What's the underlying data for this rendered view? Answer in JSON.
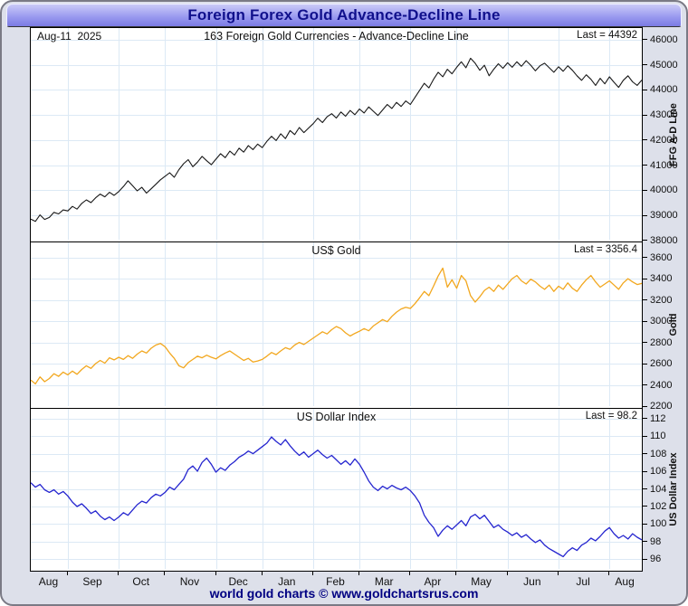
{
  "window": {
    "title": "Foreign Forex Gold Advance-Decline Line"
  },
  "date_label": "Aug-11  2025",
  "footer_text": "world gold charts © www.goldchartsrus.com",
  "months": [
    "Aug",
    "Sep",
    "Oct",
    "Nov",
    "Dec",
    "Jan",
    "Feb",
    "Mar",
    "Apr",
    "May",
    "Jun",
    "Jul",
    "Aug"
  ],
  "month_start_indices": [
    8,
    19,
    29,
    40,
    50,
    61,
    71,
    82,
    92,
    103,
    114,
    125
  ],
  "colors": {
    "title_text": "#10108c",
    "footer_text": "#000082",
    "grid": "#dce9f5",
    "adline": "#181818",
    "gold": "#f2a71e",
    "usd_index": "#2525cf",
    "frame_bg": "#dde0ea"
  },
  "chart_data": [
    {
      "type": "line",
      "title": "163 Foreign Gold Currencies - Advance-Decline Line",
      "last_label": "Last = 44392",
      "last_value": 44392,
      "ylabel": "FFG A-D Line",
      "color": "#181818",
      "stroke_width": 1.1,
      "ydomain": [
        46462,
        38034
      ],
      "yticks": [
        46000,
        45000,
        44000,
        43000,
        42000,
        41000,
        40000,
        39000,
        38000
      ],
      "x_range": "Aug 2024 - Aug 2025",
      "grid": true,
      "values": [
        38850,
        38760,
        39020,
        38840,
        38920,
        39120,
        39060,
        39220,
        39180,
        39360,
        39250,
        39480,
        39620,
        39510,
        39700,
        39850,
        39740,
        39920,
        39800,
        39950,
        40150,
        40380,
        40180,
        39980,
        40120,
        39890,
        40060,
        40240,
        40420,
        40560,
        40700,
        40520,
        40820,
        41060,
        41220,
        40940,
        41120,
        41350,
        41180,
        41020,
        41240,
        41460,
        41300,
        41560,
        41400,
        41680,
        41520,
        41780,
        41620,
        41840,
        41700,
        41950,
        42150,
        41980,
        42250,
        42060,
        42380,
        42220,
        42500,
        42300,
        42480,
        42650,
        42870,
        42700,
        42930,
        43050,
        42880,
        43120,
        42950,
        43180,
        43010,
        43240,
        43080,
        43320,
        43150,
        42980,
        43200,
        43420,
        43260,
        43500,
        43340,
        43560,
        43420,
        43700,
        43980,
        44260,
        44080,
        44420,
        44700,
        44520,
        44820,
        44640,
        44900,
        45120,
        44880,
        45260,
        45060,
        44780,
        44980,
        44560,
        44820,
        45040,
        44860,
        45080,
        44900,
        45120,
        44940,
        45160,
        44980,
        44760,
        44960,
        45060,
        44880,
        44700,
        44920,
        44740,
        44960,
        44780,
        44560,
        44380,
        44600,
        44420,
        44180,
        44460,
        44240,
        44520,
        44300,
        44100,
        44380,
        44560,
        44320,
        44180,
        44392
      ]
    },
    {
      "type": "line",
      "title": "US$ Gold",
      "last_label": "Last = 3356.4",
      "last_value": 3356.4,
      "ylabel": "Gold",
      "color": "#f2a71e",
      "stroke_width": 1.3,
      "ydomain": [
        3742,
        2200
      ],
      "yticks": [
        3600,
        3400,
        3200,
        3000,
        2800,
        2600,
        2400,
        2200
      ],
      "x_range": "Aug 2024 - Aug 2025",
      "grid": true,
      "values": [
        2445,
        2410,
        2475,
        2430,
        2460,
        2505,
        2480,
        2520,
        2495,
        2530,
        2500,
        2545,
        2580,
        2555,
        2600,
        2630,
        2605,
        2655,
        2635,
        2660,
        2640,
        2675,
        2650,
        2690,
        2720,
        2700,
        2745,
        2775,
        2790,
        2760,
        2700,
        2650,
        2580,
        2560,
        2610,
        2640,
        2670,
        2655,
        2680,
        2660,
        2645,
        2675,
        2700,
        2720,
        2690,
        2660,
        2630,
        2650,
        2615,
        2625,
        2640,
        2670,
        2705,
        2685,
        2720,
        2750,
        2735,
        2775,
        2800,
        2780,
        2810,
        2840,
        2870,
        2900,
        2880,
        2920,
        2950,
        2930,
        2890,
        2860,
        2885,
        2905,
        2930,
        2910,
        2955,
        2985,
        3015,
        2995,
        3045,
        3085,
        3115,
        3130,
        3120,
        3165,
        3220,
        3280,
        3240,
        3330,
        3425,
        3500,
        3320,
        3390,
        3310,
        3430,
        3380,
        3240,
        3180,
        3230,
        3290,
        3320,
        3280,
        3340,
        3300,
        3350,
        3400,
        3430,
        3380,
        3350,
        3395,
        3370,
        3330,
        3300,
        3340,
        3280,
        3330,
        3300,
        3360,
        3310,
        3280,
        3340,
        3390,
        3430,
        3370,
        3320,
        3350,
        3380,
        3340,
        3300,
        3360,
        3400,
        3370,
        3345,
        3356.4
      ]
    },
    {
      "type": "line",
      "title": "US Dollar Index",
      "last_label": "Last = 98.2",
      "last_value": 98.2,
      "ylabel": "US Dollar Index",
      "color": "#2525cf",
      "stroke_width": 1.3,
      "ydomain": [
        113.1,
        94.9
      ],
      "yticks": [
        112,
        110,
        108,
        106,
        104,
        102,
        100,
        98,
        96
      ],
      "x_range": "Aug 2024 - Aug 2025",
      "grid": true,
      "values": [
        104.7,
        104.2,
        104.5,
        103.9,
        103.6,
        103.9,
        103.4,
        103.7,
        103.2,
        102.5,
        102.0,
        102.3,
        101.8,
        101.2,
        101.5,
        100.9,
        100.5,
        100.8,
        100.4,
        100.8,
        101.3,
        101.0,
        101.6,
        102.2,
        102.6,
        102.4,
        103.0,
        103.4,
        103.2,
        103.6,
        104.2,
        103.9,
        104.5,
        105.1,
        106.2,
        106.6,
        106.0,
        107.0,
        107.5,
        106.8,
        105.9,
        106.4,
        106.1,
        106.7,
        107.1,
        107.6,
        107.9,
        108.3,
        108.0,
        108.4,
        108.8,
        109.2,
        109.9,
        109.4,
        109.0,
        109.6,
        108.9,
        108.3,
        107.8,
        108.2,
        107.6,
        108.0,
        108.4,
        107.9,
        107.5,
        107.8,
        107.3,
        106.8,
        107.2,
        106.7,
        107.4,
        106.8,
        105.9,
        104.9,
        104.2,
        103.8,
        104.3,
        104.0,
        104.4,
        104.1,
        103.9,
        104.2,
        103.8,
        103.2,
        102.4,
        101.0,
        100.2,
        99.6,
        98.6,
        99.3,
        99.8,
        99.4,
        99.9,
        100.4,
        99.8,
        100.8,
        101.1,
        100.6,
        101.0,
        100.3,
        99.6,
        99.9,
        99.4,
        99.1,
        98.7,
        99.0,
        98.5,
        98.8,
        98.3,
        97.9,
        98.2,
        97.6,
        97.2,
        96.9,
        96.6,
        96.3,
        96.9,
        97.3,
        97.0,
        97.6,
        97.9,
        98.4,
        98.1,
        98.6,
        99.2,
        99.6,
        98.9,
        98.4,
        98.7,
        98.3,
        98.9,
        98.5,
        98.2
      ]
    }
  ]
}
